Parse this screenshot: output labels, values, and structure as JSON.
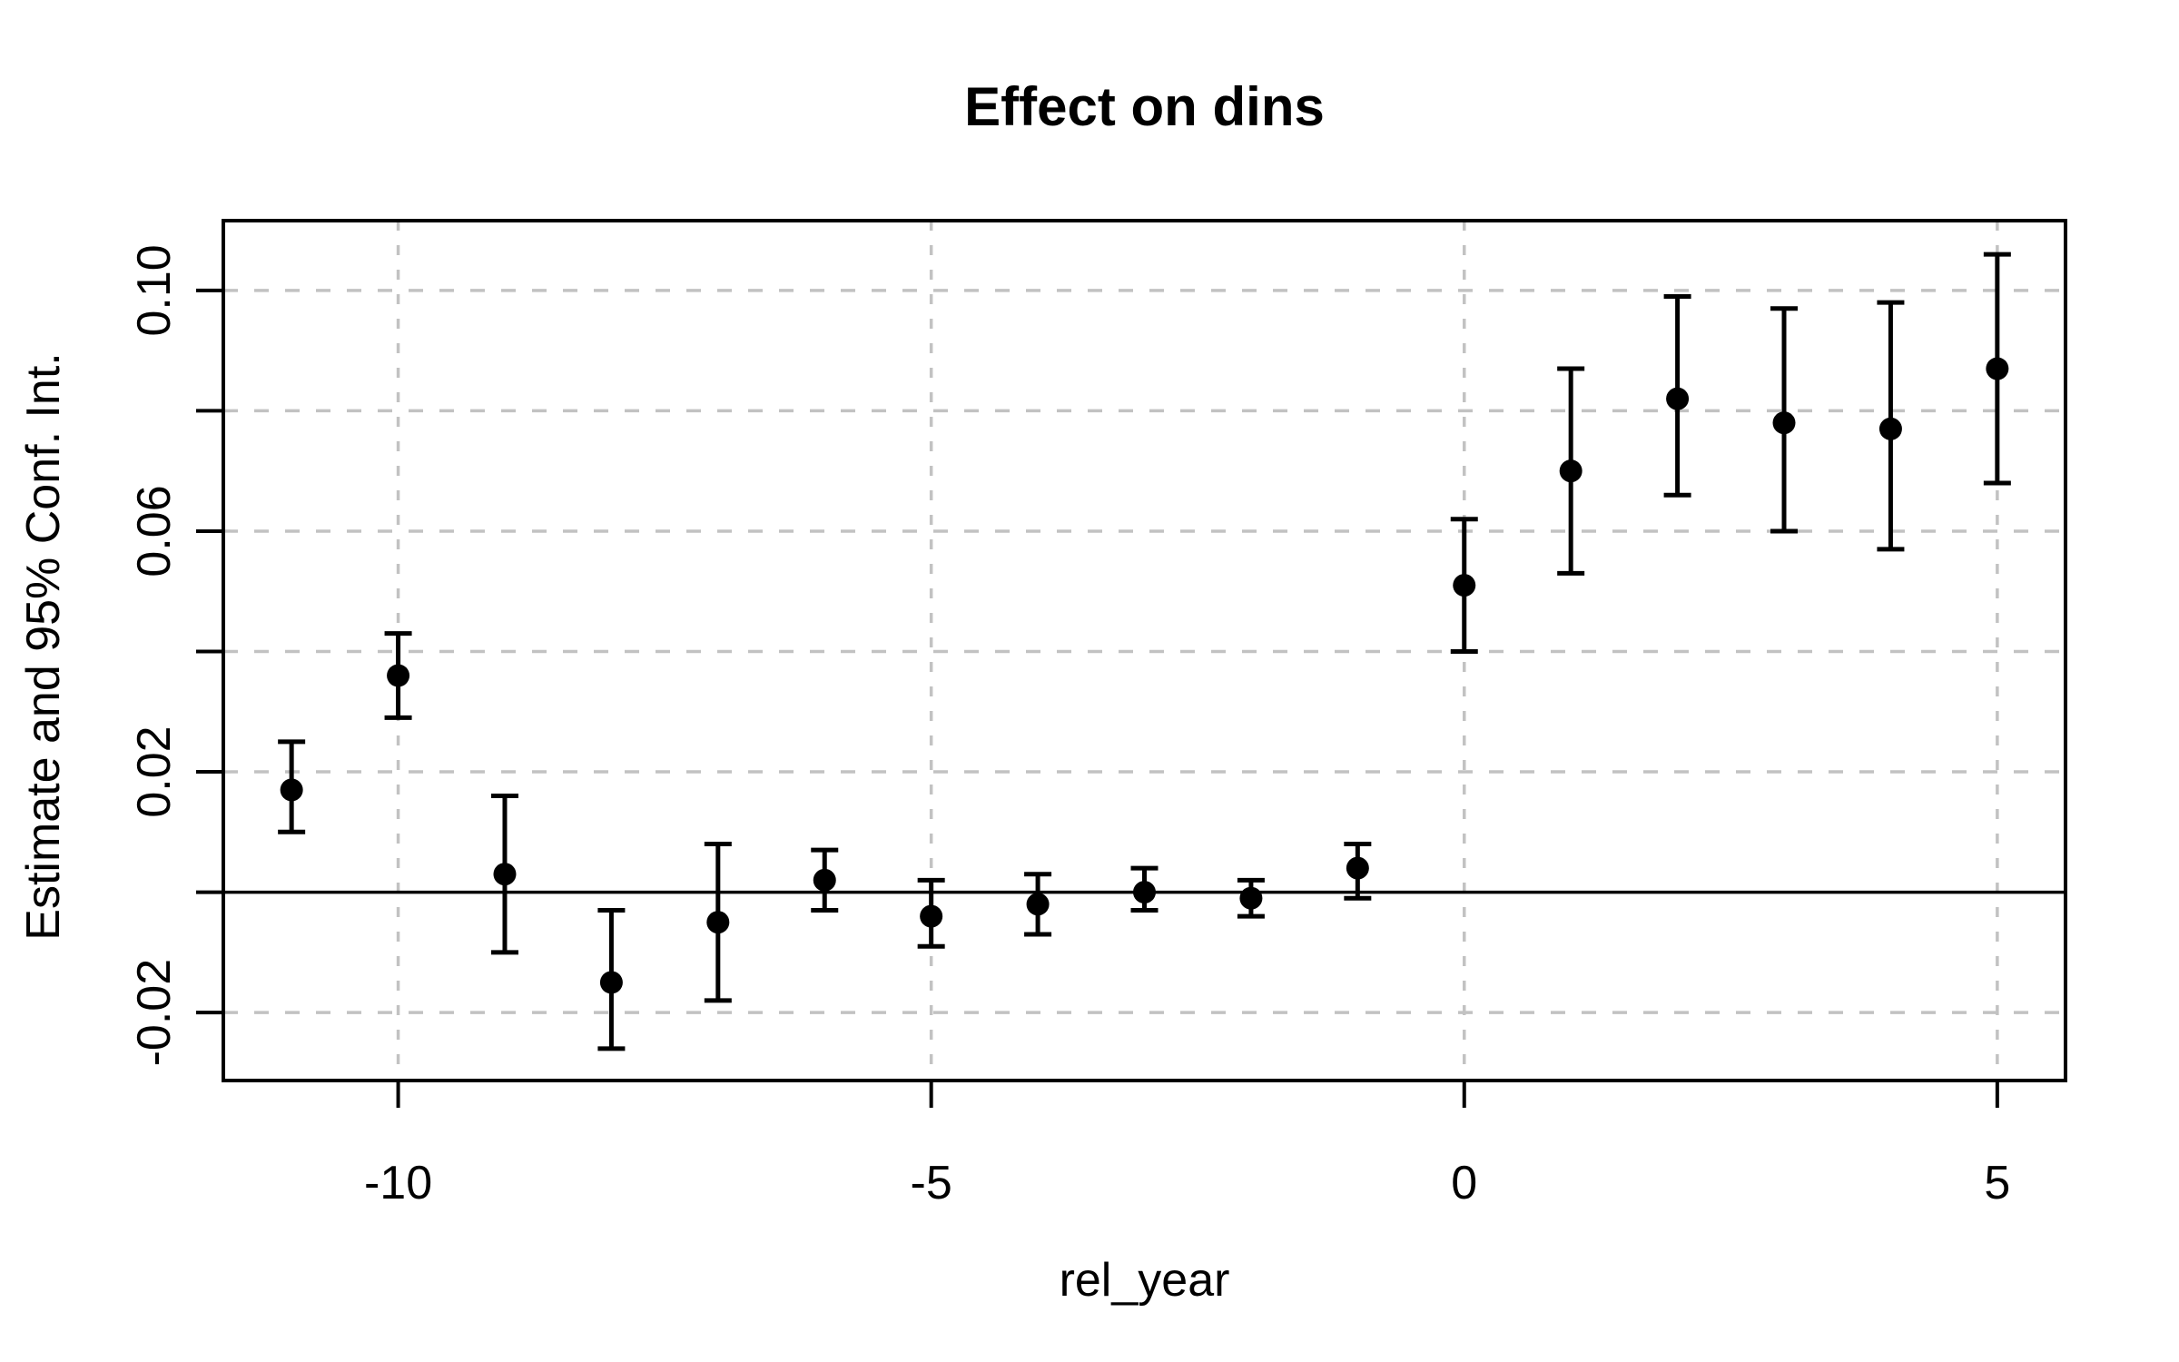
{
  "chart_data": {
    "type": "scatter",
    "subtype": "event-study-errorbars",
    "title": "Effect on dins",
    "xlabel": "rel_year",
    "ylabel": "Estimate and 95% Conf. Int.",
    "x": [
      -11,
      -10,
      -9,
      -8,
      -7,
      -6,
      -5,
      -4,
      -3,
      -2,
      -1,
      0,
      1,
      2,
      3,
      4,
      5
    ],
    "series": [
      {
        "name": "estimate",
        "values": [
          0.017,
          0.036,
          0.003,
          -0.015,
          -0.005,
          0.002,
          -0.004,
          -0.002,
          0.0,
          -0.001,
          0.004,
          0.051,
          0.07,
          0.082,
          0.078,
          0.077,
          0.087
        ]
      },
      {
        "name": "ci_lower",
        "values": [
          0.01,
          0.029,
          -0.01,
          -0.026,
          -0.018,
          -0.003,
          -0.009,
          -0.007,
          -0.003,
          -0.004,
          -0.001,
          0.04,
          0.053,
          0.066,
          0.06,
          0.057,
          0.068
        ]
      },
      {
        "name": "ci_upper",
        "values": [
          0.025,
          0.043,
          0.016,
          -0.003,
          0.008,
          0.007,
          0.002,
          0.003,
          0.004,
          0.002,
          0.008,
          0.062,
          0.087,
          0.099,
          0.097,
          0.098,
          0.106
        ]
      }
    ],
    "xlim": [
      -11.64,
      5.64
    ],
    "ylim": [
      -0.0313,
      0.1116
    ],
    "xticks": {
      "values": [
        -10,
        -5,
        0,
        5
      ],
      "labels": [
        "-10",
        "-5",
        "0",
        "5"
      ]
    },
    "yticks": {
      "values": [
        0.1,
        0.08,
        0.06,
        0.04,
        0.02,
        0.0,
        -0.02
      ],
      "labels": [
        "0.10",
        "",
        "0.06",
        "",
        "0.02",
        "",
        "-0.02"
      ]
    },
    "grid": {
      "show": true,
      "line_style": "dashed",
      "color": "#c2c2c2"
    },
    "reference_line_y": 0,
    "point_color": "#000000",
    "errorbar_color": "#000000",
    "axis_color": "#000000",
    "background_color": "#ffffff",
    "legend": null
  }
}
